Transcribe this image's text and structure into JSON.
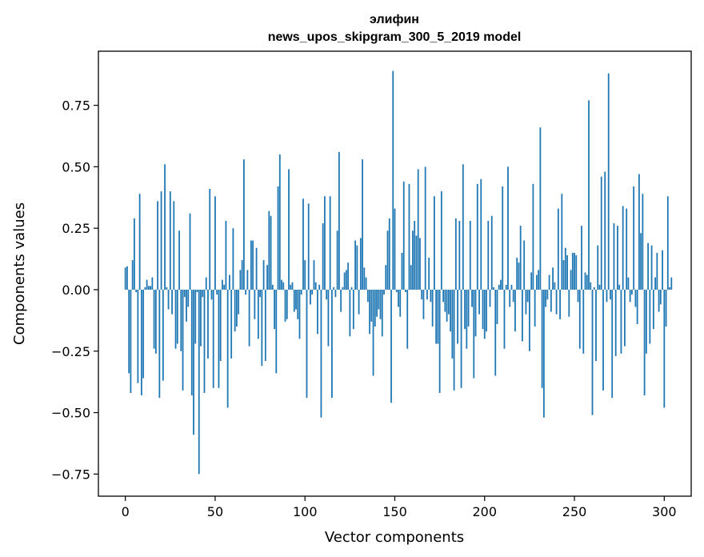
{
  "chart_data": {
    "type": "bar",
    "title": "элифин",
    "subtitle": "news_upos_skipgram_300_5_2019 model",
    "xlabel": "Vector components",
    "ylabel": "Components values",
    "xlim": [
      -15,
      315
    ],
    "ylim": [
      -0.84,
      0.97
    ],
    "xticks": [
      0,
      50,
      100,
      150,
      200,
      250,
      300
    ],
    "yticks": [
      -0.75,
      -0.5,
      -0.25,
      0.0,
      0.25,
      0.5,
      0.75
    ],
    "ytick_labels": [
      "−0.75",
      "−0.50",
      "−0.25",
      "0.00",
      "0.25",
      "0.50",
      "0.75"
    ],
    "grid": false,
    "bar_color": "#1f77b4",
    "values": [
      0.09,
      0.095,
      -0.34,
      -0.42,
      0.12,
      0.29,
      -0.01,
      -0.38,
      0.39,
      -0.43,
      -0.36,
      0.01,
      0.04,
      0.015,
      0.015,
      0.05,
      -0.24,
      -0.26,
      0.36,
      -0.44,
      0.4,
      -0.37,
      0.51,
      0.01,
      -0.08,
      0.4,
      -0.1,
      0.36,
      -0.24,
      -0.22,
      0.24,
      -0.25,
      -0.41,
      -0.03,
      -0.13,
      -0.07,
      0.31,
      -0.43,
      -0.59,
      -0.22,
      -0.01,
      -0.75,
      -0.23,
      -0.03,
      -0.42,
      0.05,
      -0.28,
      0.41,
      -0.04,
      -0.4,
      0.38,
      -0.02,
      -0.4,
      -0.29,
      0.04,
      0.02,
      0.28,
      -0.48,
      0.06,
      -0.28,
      0.25,
      -0.17,
      -0.15,
      -0.1,
      0.08,
      0.12,
      0.53,
      -0.02,
      0.08,
      -0.23,
      0.2,
      0.2,
      -0.12,
      0.17,
      -0.2,
      -0.03,
      -0.31,
      0.12,
      -0.29,
      0.1,
      0.32,
      0.3,
      0.02,
      -0.16,
      -0.34,
      0.42,
      0.55,
      0.04,
      0.03,
      -0.13,
      -0.12,
      0.49,
      0.02,
      0.03,
      -0.09,
      -0.08,
      -0.12,
      -0.2,
      -0.02,
      0.37,
      0.12,
      -0.44,
      0.35,
      -0.06,
      -0.02,
      0.12,
      0.03,
      -0.18,
      0.02,
      -0.52,
      0.27,
      0.38,
      -0.04,
      -0.23,
      0.38,
      -0.44,
      0.01,
      -0.03,
      0.24,
      0.56,
      -0.09,
      0.01,
      0.07,
      0.08,
      0.11,
      -0.19,
      0.01,
      -0.16,
      0.2,
      0.18,
      -0.1,
      0.21,
      0.53,
      0.09,
      0.05,
      -0.05,
      -0.18,
      -0.13,
      -0.35,
      -0.15,
      -0.11,
      -0.08,
      -0.12,
      -0.19,
      -0.02,
      0.1,
      0.24,
      0.29,
      -0.46,
      0.89,
      0.33,
      -0.01,
      -0.07,
      -0.11,
      0.15,
      0.44,
      -0.01,
      -0.24,
      0.43,
      0.1,
      0.24,
      0.28,
      0.22,
      0.49,
      0.21,
      -0.04,
      -0.12,
      0.5,
      -0.04,
      0.13,
      -0.05,
      -0.15,
      0.38,
      -0.22,
      -0.22,
      -0.42,
      0.4,
      -0.05,
      -0.09,
      -0.13,
      -0.1,
      -0.17,
      -0.28,
      -0.41,
      0.29,
      -0.22,
      0.28,
      -0.4,
      0.51,
      -0.16,
      -0.24,
      -0.15,
      0.28,
      -0.07,
      -0.36,
      -0.19,
      0.43,
      -0.1,
      0.45,
      -0.16,
      -0.2,
      -0.17,
      0.28,
      -0.07,
      0.3,
      0.01,
      -0.35,
      -0.14,
      0.02,
      0.04,
      0.42,
      -0.24,
      0.02,
      0.5,
      -0.07,
      0.02,
      -0.05,
      -0.17,
      0.13,
      0.11,
      0.26,
      -0.21,
      0.2,
      -0.1,
      -0.05,
      -0.25,
      0.07,
      0.43,
      -0.15,
      0.06,
      0.08,
      0.66,
      -0.4,
      -0.52,
      -0.07,
      -0.04,
      0.06,
      -0.09,
      0.09,
      0.03,
      -0.1,
      0.33,
      -0.12,
      0.39,
      0.12,
      0.17,
      0.14,
      -0.11,
      0.08,
      0.15,
      0.15,
      0.14,
      -0.05,
      -0.24,
      0.26,
      -0.26,
      0.07,
      0.06,
      0.77,
      0.03,
      -0.51,
      0.01,
      -0.29,
      0.18,
      0.02,
      0.46,
      -0.41,
      0.48,
      -0.05,
      0.88,
      -0.04,
      -0.44,
      0.27,
      -0.27,
      0.26,
      0.02,
      -0.26,
      0.34,
      -0.23,
      0.33,
      0.05,
      -0.05,
      -0.02,
      0.42,
      -0.07,
      -0.14,
      0.47,
      0.23,
      0.39,
      -0.43,
      -0.26,
      0.19,
      -0.22,
      0.18,
      -0.16,
      0.05,
      0.15,
      -0.09,
      -0.06,
      0.16,
      -0.48,
      -0.15,
      0.38,
      0.01,
      0.05
    ]
  }
}
